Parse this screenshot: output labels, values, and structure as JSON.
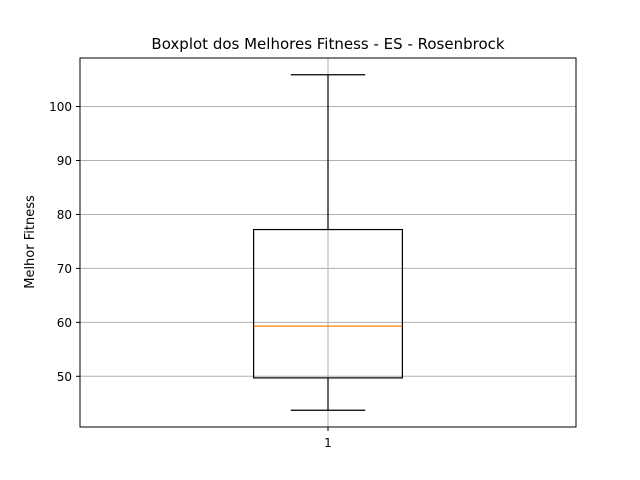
{
  "chart_data": {
    "type": "boxplot",
    "title": "Boxplot dos Melhores Fitness - ES - Rosenbrock",
    "xlabel": "",
    "ylabel": "Melhor Fitness",
    "categories": [
      "1"
    ],
    "boxes": [
      {
        "category": "1",
        "whisker_low": 43.7,
        "q1": 49.7,
        "median": 59.3,
        "q3": 77.2,
        "whisker_high": 105.9
      }
    ],
    "y_ticks": [
      50,
      60,
      70,
      80,
      90,
      100
    ],
    "ylim": [
      40.6,
      109.0
    ],
    "grid": true,
    "colors": {
      "box": "#000000",
      "median": "#ff7f0e",
      "grid": "#b0b0b0"
    }
  }
}
